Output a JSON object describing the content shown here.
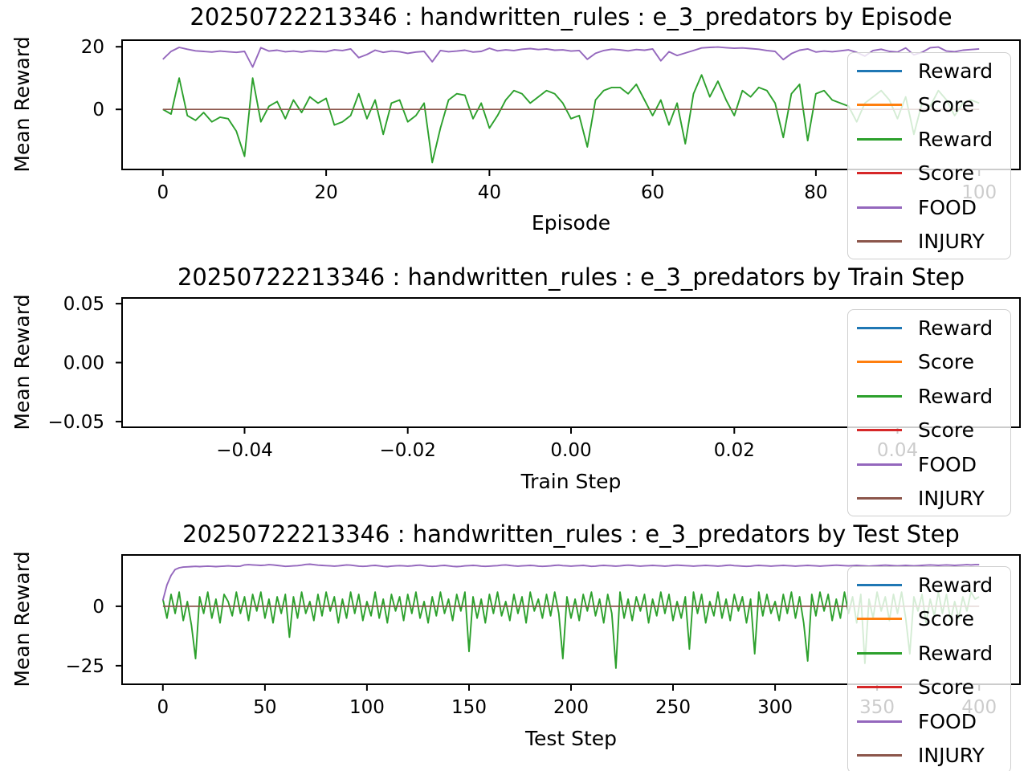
{
  "figure": {
    "background": "#ffffff"
  },
  "colors": {
    "blue": "#1f77b4",
    "orange": "#ff7f0e",
    "green": "#2ca02c",
    "red": "#d62728",
    "purple": "#9467bd",
    "brown": "#8c564b",
    "spine": "#000000",
    "legend_edge": "#cccccc"
  },
  "legend": {
    "entries": [
      {
        "label": "Reward",
        "color": "#1f77b4"
      },
      {
        "label": "Score",
        "color": "#ff7f0e"
      },
      {
        "label": "Reward",
        "color": "#2ca02c"
      },
      {
        "label": "Score",
        "color": "#d62728"
      },
      {
        "label": "FOOD",
        "color": "#9467bd"
      },
      {
        "label": "INJURY",
        "color": "#8c564b"
      }
    ],
    "position": "upper right, overlapping axes"
  },
  "chart_data": [
    {
      "type": "line",
      "title": "20250722213346 : handwritten_rules : e_3_predators by Episode",
      "xlabel": "Episode",
      "ylabel": "Mean Reward",
      "xlim": [
        -5,
        105
      ],
      "ylim": [
        -19.2,
        22.1
      ],
      "xticks": [
        0,
        20,
        40,
        60,
        80,
        100
      ],
      "xtick_labels": [
        "0",
        "20",
        "40",
        "60",
        "80",
        "100"
      ],
      "yticks": [
        0,
        20
      ],
      "ytick_labels": [
        "0",
        "20"
      ],
      "grid": false,
      "series": [
        {
          "name": "Reward",
          "color": "#1f77b4",
          "x": [],
          "y": []
        },
        {
          "name": "Score",
          "color": "#ff7f0e",
          "x": [],
          "y": []
        },
        {
          "name": "Reward",
          "color": "#2ca02c",
          "x_start": 0,
          "x_step": 1,
          "y": [
            0,
            -1.5,
            10,
            -2,
            -3.5,
            -1,
            -4,
            -2.5,
            -3,
            -7,
            -15,
            10,
            -4,
            1,
            2.5,
            -3,
            3,
            -1,
            4,
            2,
            3.5,
            -5,
            -4,
            -2,
            5,
            -3,
            3,
            -8,
            2,
            3,
            -4,
            -2,
            2,
            -17,
            -6,
            3,
            5,
            4.5,
            -3,
            2,
            -6,
            -2,
            3,
            6,
            5,
            2,
            4,
            6,
            5,
            2,
            -3,
            -2,
            -12,
            3,
            6,
            7,
            7,
            5,
            8,
            3,
            -2,
            3,
            -5,
            2,
            -11,
            5,
            11,
            4,
            9,
            3,
            -2,
            6,
            4,
            7,
            6,
            2,
            -9,
            5,
            8,
            -10,
            5,
            6,
            3,
            2,
            1,
            -4,
            2,
            4,
            6,
            3,
            -3,
            4,
            -8,
            2,
            1,
            6,
            3,
            -2,
            2,
            3,
            2
          ]
        },
        {
          "name": "Score",
          "color": "#d62728",
          "y_same_as": "FOOD"
        },
        {
          "name": "FOOD",
          "color": "#9467bd",
          "x_start": 0,
          "x_step": 1,
          "y": [
            16,
            18.5,
            19.8,
            19.2,
            18.7,
            18.5,
            18.3,
            18.6,
            18.4,
            18.2,
            18.5,
            13.5,
            19.7,
            18.6,
            18.9,
            18.4,
            18.6,
            18.3,
            18.7,
            18.5,
            18.4,
            19.0,
            18.8,
            19.3,
            16.5,
            17.5,
            18.9,
            18.2,
            18.6,
            18.4,
            17.9,
            18.3,
            18.5,
            15.2,
            18.8,
            18.4,
            18.6,
            18.9,
            18.3,
            18.5,
            19.5,
            18.7,
            19.0,
            18.8,
            19.2,
            19.4,
            19.1,
            19.3,
            18.9,
            19.0,
            18.6,
            18.8,
            16.0,
            17.9,
            18.8,
            19.2,
            19.0,
            18.7,
            19.1,
            18.9,
            19.3,
            15.5,
            18.4,
            17.2,
            18.0,
            18.8,
            19.6,
            19.8,
            19.9,
            19.7,
            19.5,
            19.6,
            19.4,
            19.2,
            18.8,
            18.5,
            15.9,
            17.8,
            18.9,
            19.3,
            18.3,
            18.6,
            18.4,
            18.7,
            19.0,
            18.2,
            17.0,
            18.8,
            19.2,
            18.5,
            18.3,
            19.6,
            17.4,
            18.2,
            19.7,
            19.9,
            18.6,
            18.4,
            18.9,
            19.1,
            19.3
          ]
        },
        {
          "name": "INJURY",
          "color": "#8c564b",
          "x": [
            0,
            100
          ],
          "y": [
            0,
            0
          ]
        }
      ]
    },
    {
      "type": "line",
      "title": "20250722213346 : handwritten_rules : e_3_predators by Train Step",
      "xlabel": "Train Step",
      "ylabel": "Mean Reward",
      "xlim": [
        -0.055,
        0.055
      ],
      "ylim": [
        -0.0548,
        0.0548
      ],
      "xticks": [
        -0.04,
        -0.02,
        0.0,
        0.02,
        0.04
      ],
      "xtick_labels": [
        "−0.04",
        "−0.02",
        "0.00",
        "0.02",
        "0.04"
      ],
      "yticks": [
        -0.05,
        0.0,
        0.05
      ],
      "ytick_labels": [
        "−0.05",
        "0.00",
        "0.05"
      ],
      "grid": false,
      "series": [
        {
          "name": "Reward",
          "color": "#1f77b4",
          "x": [],
          "y": []
        },
        {
          "name": "Score",
          "color": "#ff7f0e",
          "x": [],
          "y": []
        },
        {
          "name": "Reward",
          "color": "#2ca02c",
          "x": [],
          "y": []
        },
        {
          "name": "Score",
          "color": "#d62728",
          "x": [],
          "y": []
        },
        {
          "name": "FOOD",
          "color": "#9467bd",
          "x": [],
          "y": []
        },
        {
          "name": "INJURY",
          "color": "#8c564b",
          "x": [],
          "y": []
        }
      ]
    },
    {
      "type": "line",
      "title": "20250722213346 : handwritten_rules : e_3_predators by Test Step",
      "xlabel": "Test Step",
      "ylabel": "Mean Reward",
      "xlim": [
        -20,
        420
      ],
      "ylim": [
        -32.8,
        21.6
      ],
      "xticks": [
        0,
        50,
        100,
        150,
        200,
        250,
        300,
        350,
        400
      ],
      "xtick_labels": [
        "0",
        "50",
        "100",
        "150",
        "200",
        "250",
        "300",
        "350",
        "400"
      ],
      "yticks": [
        -25,
        0
      ],
      "ytick_labels": [
        "−25",
        "0"
      ],
      "grid": false,
      "series": [
        {
          "name": "Reward",
          "color": "#1f77b4",
          "x": [],
          "y": []
        },
        {
          "name": "Score",
          "color": "#ff7f0e",
          "x": [],
          "y": []
        },
        {
          "name": "Reward",
          "color": "#2ca02c",
          "x_start": 0,
          "x_step": 2,
          "y": [
            3,
            -5,
            5,
            -3,
            6,
            -6,
            2,
            -8,
            -22,
            4,
            -3,
            6,
            -5,
            3,
            -7,
            5,
            2,
            -4,
            6,
            -3,
            4,
            -6,
            5,
            -2,
            6,
            -5,
            3,
            -7,
            4,
            -3,
            5,
            -13,
            4,
            -5,
            6,
            -3,
            2,
            -6,
            5,
            -4,
            6,
            -2,
            4,
            -7,
            3,
            -5,
            6,
            -3,
            5,
            -6,
            2,
            -4,
            6,
            -5,
            3,
            -7,
            5,
            -2,
            4,
            -6,
            5,
            -3,
            6,
            -5,
            2,
            -7,
            4,
            -4,
            6,
            -3,
            3,
            -6,
            5,
            -2,
            6,
            -19,
            4,
            -5,
            3,
            -7,
            5,
            -3,
            6,
            -4,
            2,
            -6,
            5,
            -3,
            4,
            -7,
            6,
            -2,
            3,
            -5,
            5,
            -4,
            6,
            -3,
            -22,
            4,
            -5,
            3,
            -6,
            5,
            -2,
            6,
            -4,
            3,
            -7,
            5,
            -3,
            -26,
            6,
            -5,
            3,
            -6,
            4,
            -2,
            5,
            -7,
            3,
            -4,
            6,
            -3,
            5,
            -6,
            2,
            -5,
            4,
            -18,
            6,
            -3,
            5,
            -7,
            2,
            -4,
            6,
            -5,
            3,
            -6,
            5,
            -2,
            4,
            -7,
            3,
            -20,
            6,
            -4,
            5,
            -3,
            2,
            -6,
            5,
            -3,
            6,
            -5,
            4,
            -7,
            -23,
            5,
            -4,
            6,
            -2,
            5,
            -6,
            3,
            -5,
            6,
            -3,
            4,
            -7,
            5,
            -24,
            3,
            -5,
            6,
            -2,
            4,
            -6,
            5,
            -3,
            6,
            -5,
            -20,
            4,
            -2,
            5,
            -7,
            3,
            -4,
            6,
            -3,
            5,
            -6,
            2,
            -5,
            4,
            -2,
            6,
            3,
            4
          ]
        },
        {
          "name": "Score",
          "color": "#d62728",
          "y_same_as": "FOOD"
        },
        {
          "name": "FOOD",
          "color": "#9467bd",
          "x_start": 0,
          "x_step": 2,
          "y": [
            2.5,
            9,
            13,
            15.5,
            16.2,
            16.5,
            16.6,
            16.7,
            16.8,
            16.7,
            16.8,
            16.9,
            16.8,
            16.7,
            16.8,
            16.9,
            17.0,
            16.9,
            16.8,
            16.9,
            17.4,
            17.5,
            17.4,
            17.3,
            17.2,
            17.3,
            17.5,
            17.4,
            17.2,
            17.0,
            16.8,
            16.9,
            17.0,
            17.1,
            17.3,
            17.6,
            17.7,
            17.5,
            17.3,
            17.2,
            17.1,
            17.0,
            16.9,
            17.0,
            17.2,
            17.4,
            17.3,
            17.1,
            16.9,
            16.8,
            16.9,
            17.1,
            17.2,
            17.0,
            16.8,
            16.7,
            16.9,
            17.0,
            17.1,
            17.0,
            16.9,
            17.0,
            17.2,
            17.3,
            17.1,
            16.9,
            16.8,
            16.9,
            17.1,
            17.2,
            17.0,
            16.8,
            16.7,
            16.8,
            17.0,
            17.1,
            17.2,
            17.1,
            16.9,
            16.8,
            16.9,
            17.0,
            17.1,
            17.3,
            17.4,
            17.2,
            17.0,
            16.9,
            17.0,
            17.1,
            17.2,
            17.1,
            16.9,
            16.8,
            16.9,
            17.0,
            17.2,
            17.3,
            17.1,
            17.0,
            16.9,
            17.0,
            17.1,
            17.2,
            17.0,
            16.8,
            16.9,
            17.1,
            17.2,
            17.1,
            17.0,
            16.9,
            17.0,
            17.2,
            17.3,
            17.2,
            17.0,
            16.9,
            17.0,
            17.1,
            17.2,
            17.1,
            17.0,
            16.9,
            17.0,
            17.2,
            17.3,
            17.2,
            17.1,
            17.0,
            16.9,
            17.0,
            17.1,
            17.2,
            17.1,
            17.0,
            16.9,
            17.0,
            17.2,
            17.3,
            17.1,
            17.0,
            16.9,
            16.8,
            16.9,
            17.1,
            17.2,
            17.1,
            17.0,
            16.9,
            17.0,
            17.1,
            17.2,
            17.1,
            17.0,
            16.9,
            17.0,
            17.1,
            17.2,
            17.1,
            17.0,
            16.9,
            17.0,
            17.1,
            17.2,
            17.3,
            17.2,
            17.1,
            17.0,
            17.1,
            17.2,
            17.1,
            17.0,
            16.9,
            17.0,
            17.1,
            17.2,
            17.3,
            17.2,
            17.1,
            17.0,
            17.1,
            17.2,
            17.1,
            17.0,
            17.1,
            17.2,
            17.3,
            17.4,
            17.3,
            17.2,
            17.3,
            17.4,
            17.3,
            17.2,
            17.3,
            17.4,
            17.5,
            17.4,
            17.5,
            17.5
          ]
        },
        {
          "name": "INJURY",
          "color": "#8c564b",
          "x": [
            0,
            400
          ],
          "y": [
            0,
            0
          ]
        }
      ]
    }
  ]
}
